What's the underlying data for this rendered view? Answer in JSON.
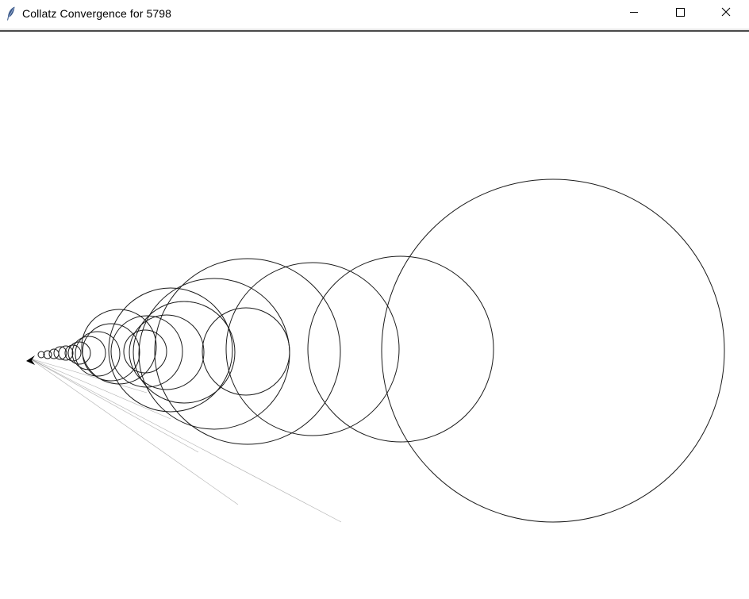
{
  "window": {
    "title": "Collatz Convergence for 5798",
    "icon": "feather-icon",
    "controls": {
      "minimize_icon": "minimize-icon",
      "maximize_icon": "maximize-icon",
      "close_icon": "close-icon"
    }
  },
  "canvas": {
    "background": "#ffffff",
    "stroke": "#1a1a1a",
    "circle_count": 22
  }
}
